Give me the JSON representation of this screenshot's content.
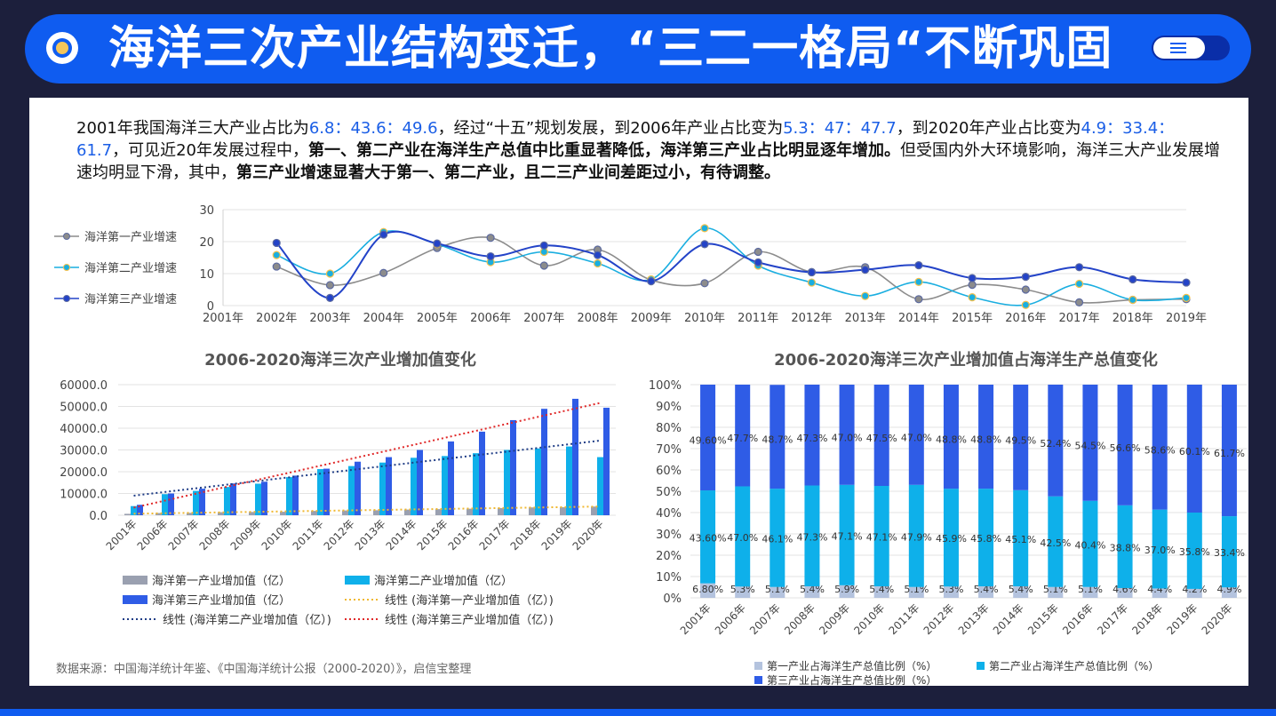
{
  "header": {
    "title": "海洋三次产业结构变迁，“三二一格局“不断巩固"
  },
  "intro": {
    "t1": "2001年我国海洋三大产业占比为",
    "h1": "6.8：43.6：49.6",
    "t2": "，经过“十五”规划发展，到2006年产业占比变为",
    "h2": "5.3：47：47.7",
    "t3": "，到2020年产业占比变为",
    "h3": "4.9：33.4：61.7",
    "t4": "，可见近20年发展过程中，",
    "b1": "第一、第二产业在海洋生产总值中比重显著降低，海洋第三产业占比明显逐年增加。",
    "t5": "但受国内外大环境影响，海洋三大产业发展增速均明显下滑，其中，",
    "b2": "第三产业增速显著大于第一、第二产业，且二三产业间差距过小，有待调整。"
  },
  "source": "数据来源：中国海洋统计年鉴、《中国海洋统计公报（2000-2020）》，启信宝整理",
  "chart_data": [
    {
      "type": "line",
      "title": "",
      "x": [
        "2001年",
        "2002年",
        "2003年",
        "2004年",
        "2005年",
        "2006年",
        "2007年",
        "2008年",
        "2009年",
        "2010年",
        "2011年",
        "2012年",
        "2013年",
        "2014年",
        "2015年",
        "2016年",
        "2017年",
        "2018年",
        "2019年"
      ],
      "ylim": [
        0,
        30
      ],
      "yticks": [
        0,
        10,
        20,
        30
      ],
      "legend": "left",
      "grid": true,
      "series": [
        {
          "name": "海洋第一产业增速",
          "color": "#8c8c8c",
          "values": [
            null,
            12.2,
            6.4,
            10.2,
            18.0,
            21.2,
            12.5,
            17.5,
            8.0,
            7.0,
            16.8,
            10.5,
            12.0,
            2.0,
            6.5,
            5.0,
            1.0,
            1.8,
            2.0
          ]
        },
        {
          "name": "海洋第二产业增速",
          "color": "#1aaee0",
          "values": [
            null,
            15.8,
            10.0,
            23.0,
            19.2,
            13.6,
            16.8,
            13.2,
            8.2,
            24.2,
            12.5,
            7.2,
            3.0,
            7.4,
            2.6,
            0.2,
            6.8,
            1.8,
            2.4
          ]
        },
        {
          "name": "海洋第三产业增速",
          "color": "#2343c8",
          "values": [
            null,
            19.6,
            2.4,
            22.2,
            19.4,
            15.4,
            18.8,
            15.8,
            7.6,
            19.2,
            13.5,
            10.4,
            11.2,
            12.6,
            8.6,
            9.0,
            12.0,
            8.2,
            7.2
          ]
        }
      ]
    },
    {
      "type": "bar",
      "title": "2006-2020海洋三次产业增加值变化",
      "categories": [
        "2001年",
        "2006年",
        "2007年",
        "2008年",
        "2009年",
        "2010年",
        "2011年",
        "2012年",
        "2013年",
        "2014年",
        "2015年",
        "2016年",
        "2017年",
        "2018年",
        "2019年",
        "2020年"
      ],
      "ylim": [
        0,
        60000
      ],
      "yticks": [
        "0.0",
        "10000.0",
        "20000.0",
        "30000.0",
        "40000.0",
        "50000.0",
        "60000.0"
      ],
      "legend": "bottom",
      "grid": true,
      "series": [
        {
          "name": "海洋第一产业增加值（亿）",
          "color": "#9aa0b0",
          "values": [
            650,
            1000,
            1100,
            1400,
            1500,
            1600,
            2000,
            2200,
            2300,
            2600,
            2800,
            3000,
            3300,
            3600,
            3700,
            4000
          ]
        },
        {
          "name": "海洋第二产业增加值（亿）",
          "color": "#0fb0ea",
          "values": [
            4200,
            9700,
            11200,
            13000,
            14500,
            17500,
            21200,
            22600,
            24200,
            26400,
            27200,
            28500,
            30000,
            30700,
            31600,
            26700
          ]
        },
        {
          "name": "海洋第三产业增加值（亿）",
          "color": "#2f5ce6",
          "values": [
            4800,
            10000,
            12200,
            14600,
            15400,
            18200,
            21400,
            24600,
            26700,
            30000,
            33900,
            38400,
            43700,
            48900,
            53500,
            49400
          ]
        }
      ],
      "trendlines": [
        {
          "name": "线性 (海洋第一产业增加值（亿）)",
          "color": "#f0b830",
          "from": 700,
          "to": 4000
        },
        {
          "name": "线性 (海洋第二产业增加值（亿）)",
          "color": "#1f3d86",
          "from": 9000,
          "to": 34300
        },
        {
          "name": "线性 (海洋第三产业增加值（亿）)",
          "color": "#e02828",
          "from": 3500,
          "to": 51600
        }
      ]
    },
    {
      "type": "bar",
      "stacked": true,
      "title": "2006-2020海洋三次产业增加值占海洋生产总值变化",
      "categories": [
        "2001年",
        "2006年",
        "2007年",
        "2008年",
        "2009年",
        "2010年",
        "2011年",
        "2012年",
        "2013年",
        "2014年",
        "2015年",
        "2016年",
        "2017年",
        "2018年",
        "2019年",
        "2020年"
      ],
      "ylim": [
        0,
        100
      ],
      "yticks": [
        "0%",
        "10%",
        "20%",
        "30%",
        "40%",
        "50%",
        "60%",
        "70%",
        "80%",
        "90%",
        "100%"
      ],
      "legend": "bottom",
      "grid": true,
      "series": [
        {
          "name": "第一产业占海洋生产总值比例（%）",
          "color": "#b4c3de",
          "values": [
            6.8,
            5.3,
            5.1,
            5.4,
            5.9,
            5.4,
            5.1,
            5.3,
            5.4,
            5.4,
            5.1,
            5.1,
            4.6,
            4.4,
            4.2,
            4.9
          ],
          "labels": [
            "6.80%",
            "5.3%",
            "5.1%",
            "5.4%",
            "5.9%",
            "5.4%",
            "5.1%",
            "5.3%",
            "5.4%",
            "5.4%",
            "5.1%",
            "5.1%",
            "4.6%",
            "4.4%",
            "4.2%",
            "4.9%"
          ]
        },
        {
          "name": "第二产业占海洋生产总值比例（%）",
          "color": "#0eb0ea",
          "values": [
            43.6,
            47.0,
            46.1,
            47.3,
            47.1,
            47.1,
            47.9,
            45.9,
            45.8,
            45.1,
            42.5,
            40.4,
            38.8,
            37.0,
            35.8,
            33.4
          ],
          "labels": [
            "43.60%",
            "47.0%",
            "46.1%",
            "47.3%",
            "47.1%",
            "47.1%",
            "47.9%",
            "45.9%",
            "45.8%",
            "45.1%",
            "42.5%",
            "40.4%",
            "38.8%",
            "37.0%",
            "35.8%",
            "33.4%"
          ]
        },
        {
          "name": "第三产业占海洋生产总值比例（%）",
          "color": "#2f5ce6",
          "values": [
            49.6,
            47.7,
            48.7,
            47.3,
            47.0,
            47.5,
            47.0,
            48.8,
            48.8,
            49.5,
            52.4,
            54.5,
            56.6,
            58.6,
            60.1,
            61.7
          ],
          "labels": [
            "49.60%",
            "47.7%",
            "48.7%",
            "47.3%",
            "47.0%",
            "47.5%",
            "47.0%",
            "48.8%",
            "48.8%",
            "49.5%",
            "52.4%",
            "54.5%",
            "56.6%",
            "58.6%",
            "60.1%",
            "61.7%"
          ]
        }
      ]
    }
  ]
}
